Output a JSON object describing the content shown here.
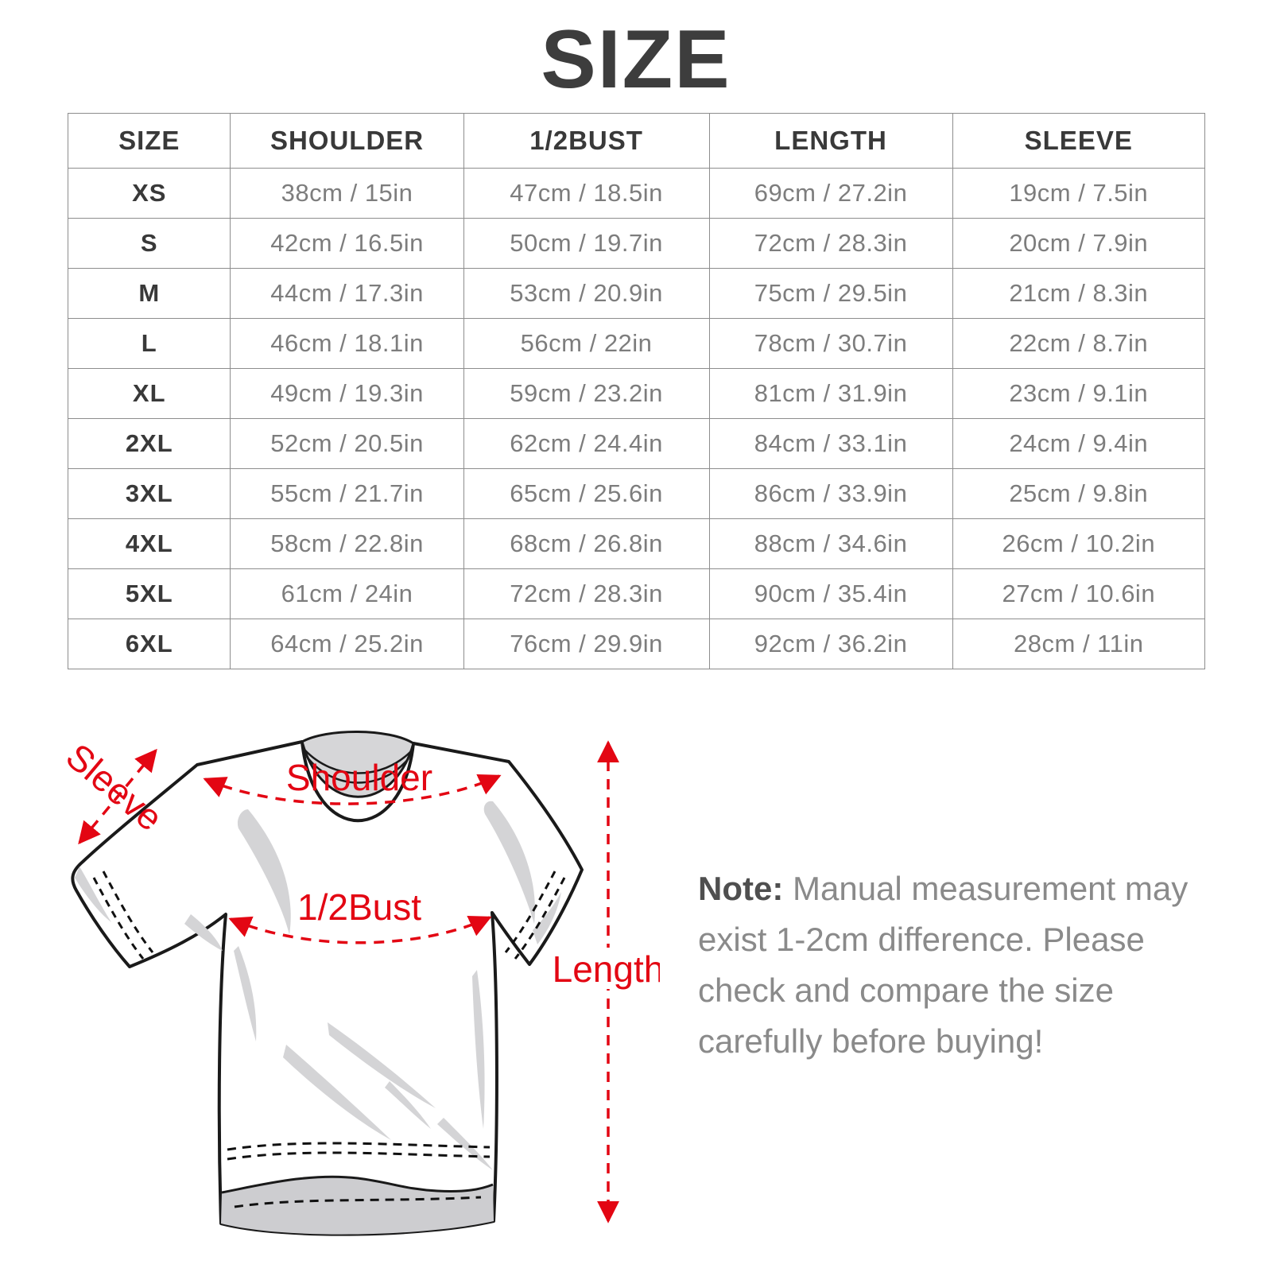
{
  "page": {
    "title": "SIZE"
  },
  "chart_data": {
    "type": "table",
    "columns": [
      "SIZE",
      "SHOULDER",
      "1/2BUST",
      "LENGTH",
      "SLEEVE"
    ],
    "rows": [
      [
        "XS",
        "38cm / 15in",
        "47cm / 18.5in",
        "69cm / 27.2in",
        "19cm / 7.5in"
      ],
      [
        "S",
        "42cm / 16.5in",
        "50cm / 19.7in",
        "72cm / 28.3in",
        "20cm / 7.9in"
      ],
      [
        "M",
        "44cm / 17.3in",
        "53cm / 20.9in",
        "75cm / 29.5in",
        "21cm / 8.3in"
      ],
      [
        "L",
        "46cm / 18.1in",
        "56cm / 22in",
        "78cm / 30.7in",
        "22cm / 8.7in"
      ],
      [
        "XL",
        "49cm / 19.3in",
        "59cm / 23.2in",
        "81cm / 31.9in",
        "23cm / 9.1in"
      ],
      [
        "2XL",
        "52cm / 20.5in",
        "62cm / 24.4in",
        "84cm / 33.1in",
        "24cm / 9.4in"
      ],
      [
        "3XL",
        "55cm / 21.7in",
        "65cm / 25.6in",
        "86cm / 33.9in",
        "25cm / 9.8in"
      ],
      [
        "4XL",
        "58cm / 22.8in",
        "68cm / 26.8in",
        "88cm / 34.6in",
        "26cm / 10.2in"
      ],
      [
        "5XL",
        "61cm / 24in",
        "72cm / 28.3in",
        "90cm / 35.4in",
        "27cm / 10.6in"
      ],
      [
        "6XL",
        "64cm / 25.2in",
        "76cm / 29.9in",
        "92cm / 36.2in",
        "28cm / 11in"
      ]
    ]
  },
  "diagram": {
    "labels": {
      "sleeve": "Sleeve",
      "shoulder": "Shoulder",
      "bust": "1/2Bust",
      "length": "Length"
    },
    "accent_color": "#e30613"
  },
  "note": {
    "label": "Note:",
    "lines": [
      "Manual measurement may",
      "exist 1-2cm difference. Please",
      "check and compare the size",
      "carefully before buying!"
    ]
  }
}
